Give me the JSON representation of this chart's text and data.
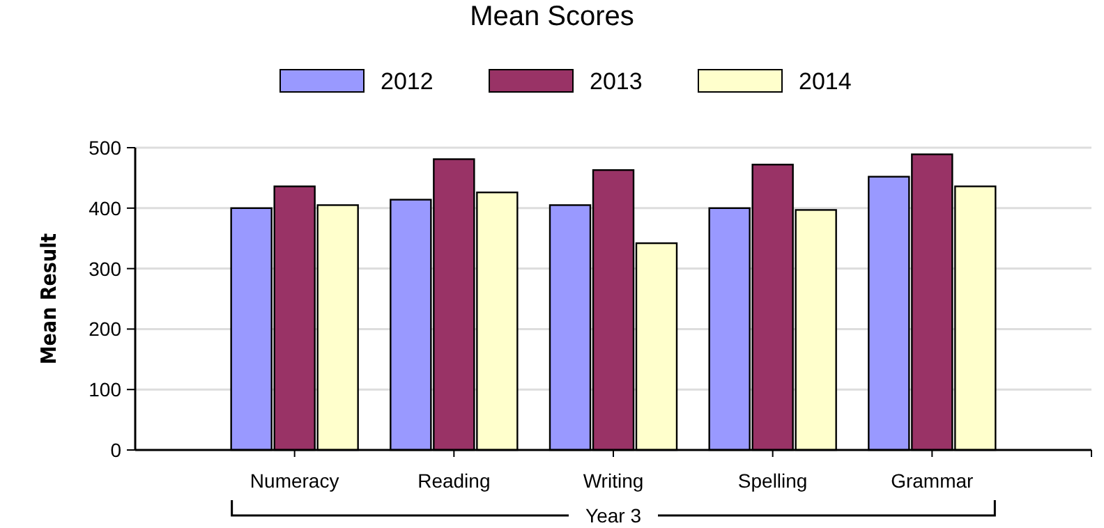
{
  "chart_data": {
    "type": "bar",
    "title": "Mean Scores",
    "ylabel": "Mean Result",
    "categories": [
      "Numeracy",
      "Reading",
      "Writing",
      "Spelling",
      "Grammar"
    ],
    "series": [
      {
        "name": "2012",
        "color": "#9999ff",
        "values": [
          400,
          414,
          405,
          400,
          452
        ]
      },
      {
        "name": "2013",
        "color": "#993366",
        "values": [
          436,
          481,
          463,
          472,
          489
        ]
      },
      {
        "name": "2014",
        "color": "#ffffcc",
        "values": [
          405,
          426,
          342,
          397,
          436
        ]
      }
    ],
    "ylim": [
      0,
      500
    ],
    "yticks": [
      0,
      100,
      200,
      300,
      400,
      500
    ],
    "grid": "y",
    "legend": "top",
    "annotations": [
      "Year 3"
    ]
  }
}
